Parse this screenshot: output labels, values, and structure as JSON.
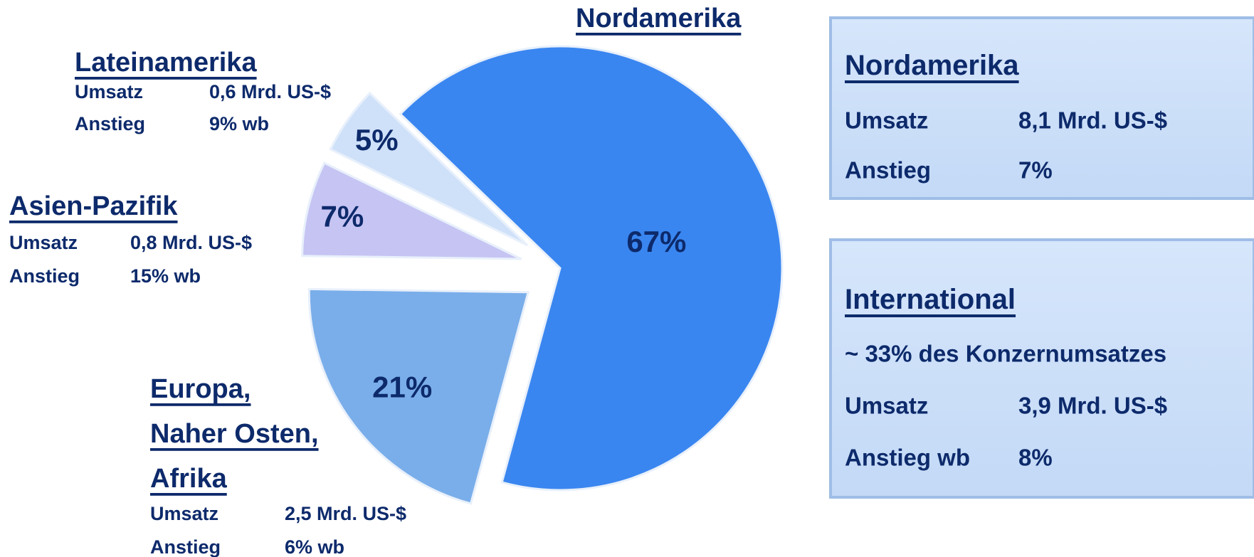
{
  "chart_data": {
    "type": "pie",
    "categories": [
      "Nordamerika",
      "Europa, Naher Osten, Afrika",
      "Asien-Pazifik",
      "Lateinamerika"
    ],
    "values": [
      67,
      21,
      7,
      5
    ],
    "value_labels": [
      "67%",
      "21%",
      "7%",
      "5%"
    ],
    "colors": [
      "#3a86f0",
      "#7aaeea",
      "#c6c4f3",
      "#cfe1f9"
    ],
    "annotations": [
      {
        "rows": [
          [
            "Umsatz",
            "2,5 Mrd. US-$"
          ],
          [
            "Anstieg",
            "6% wb"
          ]
        ]
      },
      {
        "rows": [
          [
            "Umsatz",
            "0,8 Mrd. US-$"
          ],
          [
            "Anstieg",
            "15% wb"
          ]
        ]
      },
      {
        "rows": [
          [
            "Umsatz",
            "0,6 Mrd. US-$"
          ],
          [
            "Anstieg",
            "9% wb"
          ]
        ]
      }
    ]
  },
  "boxes": [
    {
      "title": "Nordamerika",
      "rows": [
        [
          "Umsatz",
          "8,1 Mrd. US-$"
        ],
        [
          "Anstieg",
          "7%"
        ]
      ]
    },
    {
      "title": "International",
      "subtitle": "~ 33% des Konzernumsatzes",
      "rows": [
        [
          "Umsatz",
          "3,9 Mrd. US-$"
        ],
        [
          "Anstieg wb",
          "8%"
        ]
      ]
    }
  ]
}
